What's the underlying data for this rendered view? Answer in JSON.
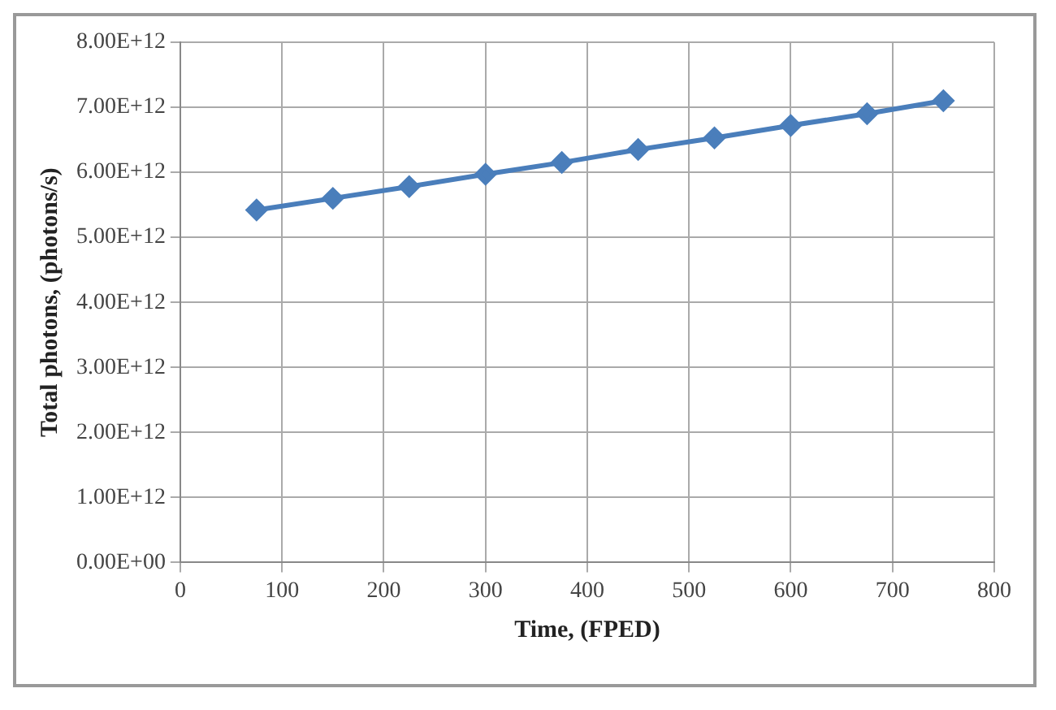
{
  "chart_data": {
    "type": "line",
    "xlabel": "Time, (FPED)",
    "ylabel": "Total photons, (photons/s)",
    "x": [
      75,
      150,
      225,
      300,
      375,
      450,
      525,
      600,
      675,
      750
    ],
    "series": [
      {
        "color": "#4a7ebb",
        "values": [
          5420000000000.0,
          5600000000000.0,
          5780000000000.0,
          5970000000000.0,
          6150000000000.0,
          6350000000000.0,
          6530000000000.0,
          6720000000000.0,
          6900000000000.0,
          7100000000000.0
        ]
      }
    ],
    "xlim": [
      0,
      800
    ],
    "xticks": [
      0,
      100,
      200,
      300,
      400,
      500,
      600,
      700,
      800
    ],
    "ylim": [
      0,
      8000000000000.0
    ],
    "yticks": [
      {
        "value": 0,
        "label": "0.00E+00"
      },
      {
        "value": 1000000000000.0,
        "label": "1.00E+12"
      },
      {
        "value": 2000000000000.0,
        "label": "2.00E+12"
      },
      {
        "value": 3000000000000.0,
        "label": "3.00E+12"
      },
      {
        "value": 4000000000000.0,
        "label": "4.00E+12"
      },
      {
        "value": 5000000000000.0,
        "label": "5.00E+12"
      },
      {
        "value": 6000000000000.0,
        "label": "6.00E+12"
      },
      {
        "value": 7000000000000.0,
        "label": "7.00E+12"
      },
      {
        "value": 8000000000000.0,
        "label": "8.00E+12"
      }
    ],
    "grid": true,
    "legend": false,
    "marker": "diamond",
    "line_style": "solid"
  }
}
